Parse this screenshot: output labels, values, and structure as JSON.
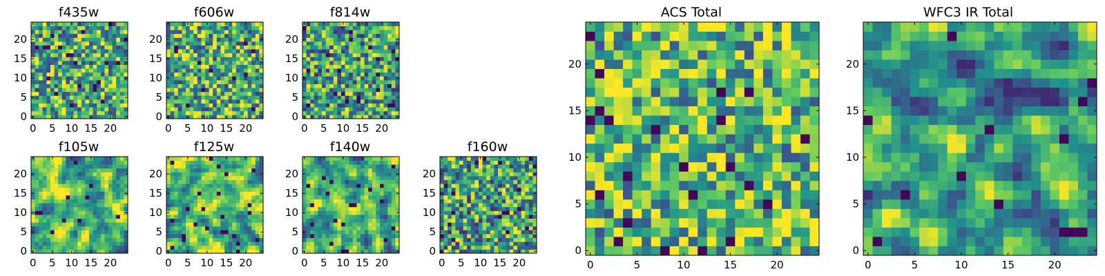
{
  "chart_data": [
    {
      "type": "heatmap",
      "title": "f435w",
      "grid_size": 25,
      "xlim": [
        0,
        24
      ],
      "ylim": [
        0,
        24
      ],
      "xticks": [
        "0",
        "5",
        "10",
        "15",
        "20"
      ],
      "yticks": [
        "0",
        "5",
        "10",
        "15",
        "20"
      ],
      "colormap": "viridis",
      "grid": false
    },
    {
      "type": "heatmap",
      "title": "f606w",
      "grid_size": 25,
      "xlim": [
        0,
        24
      ],
      "ylim": [
        0,
        24
      ],
      "xticks": [
        "0",
        "5",
        "10",
        "15",
        "20"
      ],
      "yticks": [
        "0",
        "5",
        "10",
        "15",
        "20"
      ],
      "colormap": "viridis",
      "grid": false
    },
    {
      "type": "heatmap",
      "title": "f814w",
      "grid_size": 25,
      "xlim": [
        0,
        24
      ],
      "ylim": [
        0,
        24
      ],
      "xticks": [
        "0",
        "5",
        "10",
        "15",
        "20"
      ],
      "yticks": [
        "0",
        "5",
        "10",
        "15",
        "20"
      ],
      "colormap": "viridis",
      "grid": false
    },
    {
      "type": "heatmap",
      "title": "f105w",
      "grid_size": 25,
      "xlim": [
        0,
        24
      ],
      "ylim": [
        0,
        24
      ],
      "xticks": [
        "0",
        "5",
        "10",
        "15",
        "20"
      ],
      "yticks": [
        "0",
        "5",
        "10",
        "15",
        "20"
      ],
      "colormap": "viridis",
      "grid": false
    },
    {
      "type": "heatmap",
      "title": "f125w",
      "grid_size": 25,
      "xlim": [
        0,
        24
      ],
      "ylim": [
        0,
        24
      ],
      "xticks": [
        "0",
        "5",
        "10",
        "15",
        "20"
      ],
      "yticks": [
        "0",
        "5",
        "10",
        "15",
        "20"
      ],
      "colormap": "viridis",
      "grid": false
    },
    {
      "type": "heatmap",
      "title": "f140w",
      "grid_size": 25,
      "xlim": [
        0,
        24
      ],
      "ylim": [
        0,
        24
      ],
      "xticks": [
        "0",
        "5",
        "10",
        "15",
        "20"
      ],
      "yticks": [
        "0",
        "5",
        "10",
        "15",
        "20"
      ],
      "colormap": "viridis",
      "grid": false
    },
    {
      "type": "heatmap",
      "title": "f160w",
      "grid_size": 25,
      "xlim": [
        0,
        24
      ],
      "ylim": [
        0,
        24
      ],
      "xticks": [
        "0",
        "5",
        "10",
        "15",
        "20"
      ],
      "yticks": [
        "0",
        "5",
        "10",
        "15",
        "20"
      ],
      "colormap": "viridis",
      "grid": false
    },
    {
      "type": "heatmap",
      "title": "ACS Total",
      "grid_size": 25,
      "xlim": [
        0,
        24
      ],
      "ylim": [
        0,
        24
      ],
      "xticks": [
        "0",
        "5",
        "10",
        "15",
        "20"
      ],
      "yticks": [
        "0",
        "5",
        "10",
        "15",
        "20"
      ],
      "colormap": "viridis",
      "grid": false
    },
    {
      "type": "heatmap",
      "title": "WFC3 IR Total",
      "grid_size": 25,
      "xlim": [
        0,
        24
      ],
      "ylim": [
        0,
        24
      ],
      "xticks": [
        "0",
        "5",
        "10",
        "15",
        "20"
      ],
      "yticks": [
        "0",
        "5",
        "10",
        "15",
        "20"
      ],
      "colormap": "viridis",
      "grid": false
    }
  ]
}
